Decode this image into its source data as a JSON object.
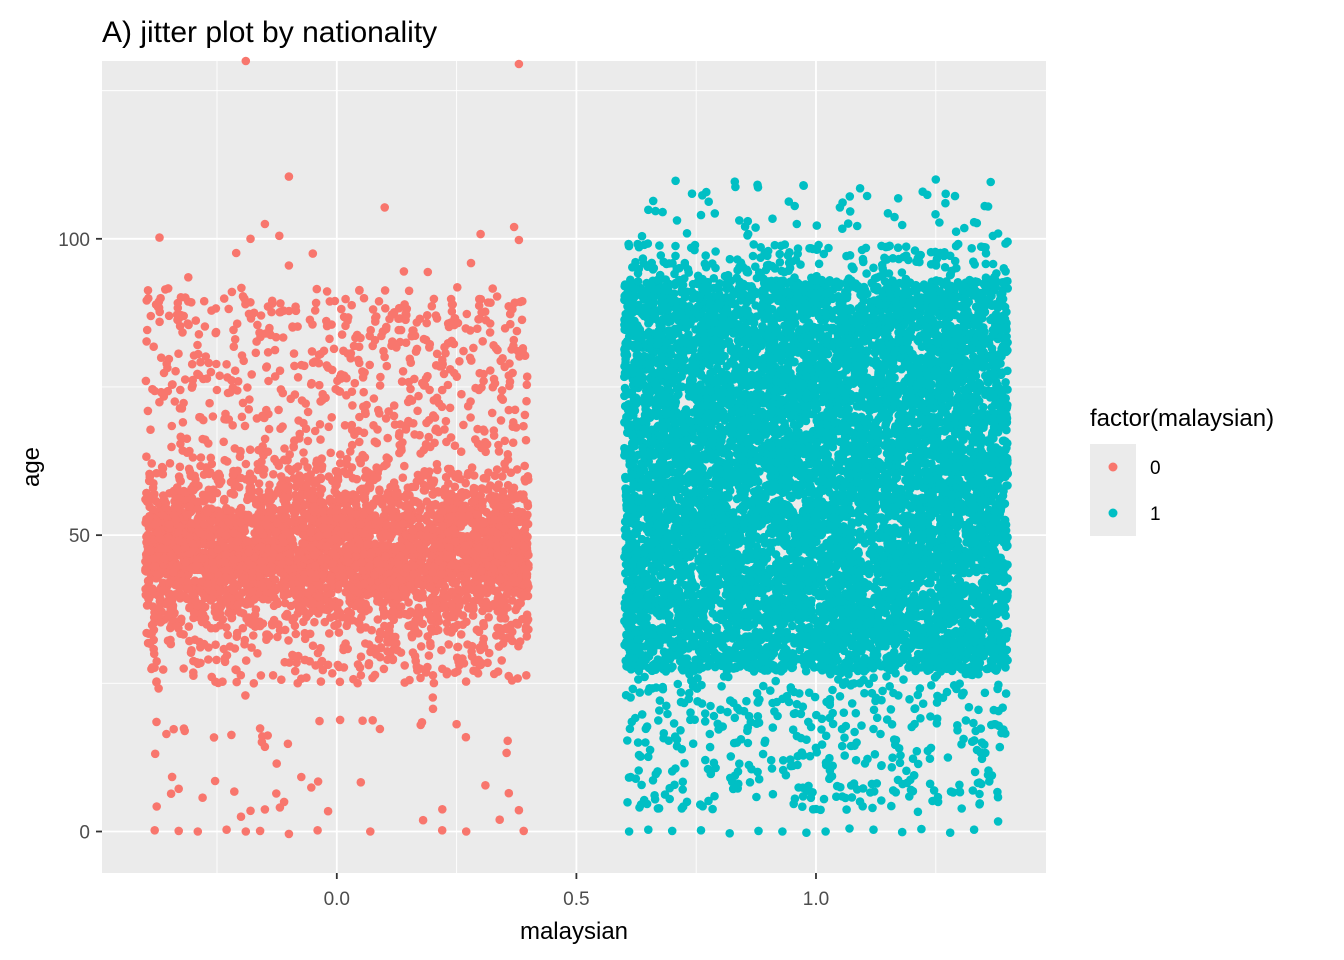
{
  "chart_data": {
    "type": "scatter",
    "title": "A) jitter plot by nationality",
    "xlabel": "malaysian",
    "ylabel": "age",
    "xlim": [
      -0.49,
      1.48
    ],
    "ylim": [
      -7,
      130
    ],
    "x_ticks": [
      0.0,
      0.5,
      1.0
    ],
    "x_tick_labels": [
      "0.0",
      "0.5",
      "1.0"
    ],
    "y_ticks": [
      0,
      50,
      100
    ],
    "y_tick_labels": [
      "0",
      "50",
      "100"
    ],
    "grid": true,
    "legend": {
      "title": "factor(malaysian)",
      "position": "right",
      "entries": [
        {
          "label": "0",
          "color": "#F8766D"
        },
        {
          "label": "1",
          "color": "#00BFC4"
        }
      ]
    },
    "series": [
      {
        "name": "0",
        "color": "#F8766D",
        "x_center": 0,
        "jitter_width": 0.4,
        "core_age_range": [
          35,
          60
        ],
        "visible_age_range": [
          0,
          130
        ],
        "outliers": [
          {
            "x": -0.19,
            "y": 130
          },
          {
            "x": 0.38,
            "y": 129.5
          },
          {
            "x": -0.1,
            "y": 110.5
          },
          {
            "x": 0.1,
            "y": 105.3
          },
          {
            "x": -0.15,
            "y": 102.5
          },
          {
            "x": 0.37,
            "y": 102
          },
          {
            "x": 0.3,
            "y": 100.8
          },
          {
            "x": -0.37,
            "y": 100.2
          },
          {
            "x": 0.38,
            "y": 99.8
          },
          {
            "x": -0.18,
            "y": 100
          },
          {
            "x": -0.12,
            "y": 100.5
          },
          {
            "x": -0.21,
            "y": 97.6
          },
          {
            "x": -0.05,
            "y": 97.5
          },
          {
            "x": -0.1,
            "y": 95.5
          },
          {
            "x": 0.14,
            "y": 94.5
          },
          {
            "x": 0.19,
            "y": 94.4
          },
          {
            "x": 0.28,
            "y": 95.9
          },
          {
            "x": -0.31,
            "y": 93.5
          },
          {
            "x": -0.38,
            "y": 0.2
          },
          {
            "x": -0.33,
            "y": 0.1
          },
          {
            "x": -0.29,
            "y": 0
          },
          {
            "x": -0.23,
            "y": 0.3
          },
          {
            "x": -0.19,
            "y": 0
          },
          {
            "x": -0.16,
            "y": 0.1
          },
          {
            "x": -0.1,
            "y": -0.4
          },
          {
            "x": -0.04,
            "y": 0.2
          },
          {
            "x": 0.07,
            "y": 0
          },
          {
            "x": 0.18,
            "y": 1.9
          },
          {
            "x": 0.22,
            "y": 0.2
          },
          {
            "x": 0.27,
            "y": 0
          },
          {
            "x": 0.34,
            "y": 2
          },
          {
            "x": 0.39,
            "y": 0.1
          },
          {
            "x": -0.33,
            "y": 7.2
          },
          {
            "x": -0.28,
            "y": 5.7
          },
          {
            "x": -0.2,
            "y": 2.5
          },
          {
            "x": -0.18,
            "y": 3.5
          },
          {
            "x": -0.11,
            "y": 5
          },
          {
            "x": 0.05,
            "y": 8.3
          },
          {
            "x": 0.31,
            "y": 7.8
          },
          {
            "x": 0.38,
            "y": 3.6
          },
          {
            "x": -0.15,
            "y": 14.3
          },
          {
            "x": -0.16,
            "y": 17.4
          },
          {
            "x": 0.09,
            "y": 17.3
          },
          {
            "x": -0.22,
            "y": 16.3
          },
          {
            "x": 0.25,
            "y": 18.1
          }
        ]
      },
      {
        "name": "1",
        "color": "#00BFC4",
        "x_center": 1,
        "jitter_width": 0.4,
        "core_age_range": [
          27,
          93
        ],
        "visible_age_range": [
          0,
          110
        ],
        "outliers": [
          {
            "x": 1.25,
            "y": 110
          },
          {
            "x": 1.29,
            "y": 107.2
          },
          {
            "x": 1.27,
            "y": 106
          },
          {
            "x": 1.05,
            "y": 105.3
          },
          {
            "x": 0.65,
            "y": 104.9
          },
          {
            "x": 0.68,
            "y": 104.5
          },
          {
            "x": 1.15,
            "y": 104.3
          },
          {
            "x": 0.76,
            "y": 104
          },
          {
            "x": 1.38,
            "y": 100.9
          },
          {
            "x": 0.71,
            "y": 103.1
          },
          {
            "x": 0.84,
            "y": 103.1
          },
          {
            "x": 0.96,
            "y": 102.5
          },
          {
            "x": 1.33,
            "y": 102.8
          },
          {
            "x": 0.61,
            "y": 0
          },
          {
            "x": 0.65,
            "y": 0.3
          },
          {
            "x": 0.7,
            "y": 0.1
          },
          {
            "x": 0.76,
            "y": 0.2
          },
          {
            "x": 0.82,
            "y": -0.3
          },
          {
            "x": 0.88,
            "y": 0.1
          },
          {
            "x": 0.93,
            "y": 0
          },
          {
            "x": 0.98,
            "y": -0.2
          },
          {
            "x": 1.02,
            "y": 0
          },
          {
            "x": 1.07,
            "y": 0.5
          },
          {
            "x": 1.12,
            "y": 0.3
          },
          {
            "x": 1.18,
            "y": -0.1
          },
          {
            "x": 1.22,
            "y": 0.4
          },
          {
            "x": 1.28,
            "y": -0.2
          },
          {
            "x": 1.33,
            "y": 0.3
          },
          {
            "x": 1.38,
            "y": 1.7
          },
          {
            "x": 0.63,
            "y": 10.3
          },
          {
            "x": 0.67,
            "y": 3.9
          },
          {
            "x": 0.72,
            "y": 3.9
          },
          {
            "x": 0.86,
            "y": 11.2
          },
          {
            "x": 0.91,
            "y": 6.3
          },
          {
            "x": 1.0,
            "y": 3.8
          },
          {
            "x": 1.06,
            "y": 12.8
          },
          {
            "x": 1.19,
            "y": 8.2
          },
          {
            "x": 1.36,
            "y": 10.3
          },
          {
            "x": 0.65,
            "y": 12.6
          },
          {
            "x": 0.85,
            "y": 20.3
          },
          {
            "x": 1.12,
            "y": 17.3
          },
          {
            "x": 1.24,
            "y": 14.1
          }
        ]
      }
    ]
  }
}
